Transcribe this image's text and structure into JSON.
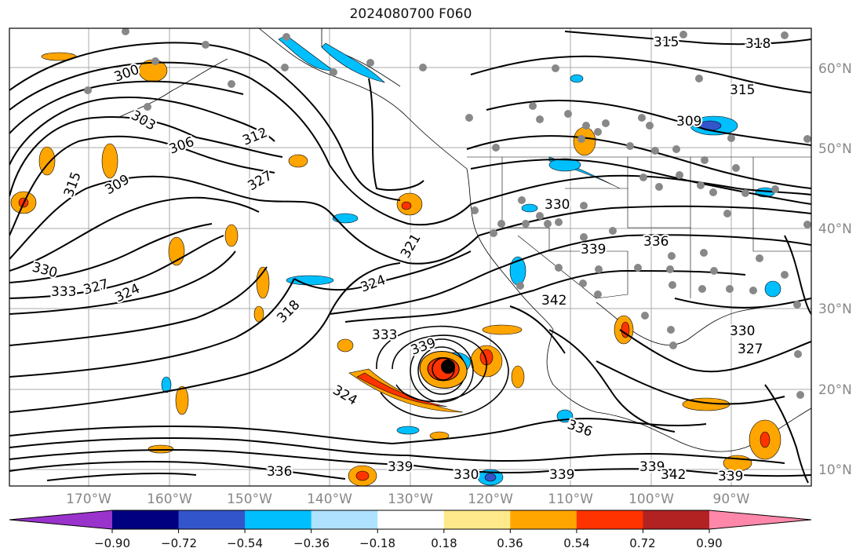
{
  "title": "2024080700 F060",
  "lon_labels": [
    "170°W",
    "160°W",
    "150°W",
    "140°W",
    "130°W",
    "120°W",
    "110°W",
    "100°W",
    "90°W"
  ],
  "lat_labels": [
    "60°N",
    "50°N",
    "40°N",
    "30°N",
    "20°N",
    "10°N"
  ],
  "contour_labels": [
    "300",
    "303",
    "306",
    "309",
    "312",
    "315",
    "318",
    "321",
    "324",
    "327",
    "330",
    "333",
    "336",
    "339",
    "342"
  ],
  "colorbar": {
    "ticks": [
      "−0.90",
      "−0.72",
      "−0.54",
      "−0.36",
      "−0.18",
      "0.18",
      "0.36",
      "0.54",
      "0.72",
      "0.90"
    ],
    "colors": [
      "#9933cc",
      "#000080",
      "#3355cc",
      "#00bfff",
      "#aee2ff",
      "#ffffff",
      "#ffe98a",
      "#ffa500",
      "#ff3300",
      "#b22222",
      "#ff88aa"
    ]
  },
  "colors": {
    "contour": "#000000",
    "grid": "#aaaaaa",
    "station": "#888888",
    "positive_low": "#ffa500",
    "positive_mid": "#ff3300",
    "negative_low": "#00bfff",
    "negative_mid": "#3355cc",
    "storm_center": "#000000"
  },
  "storm_label": "339"
}
